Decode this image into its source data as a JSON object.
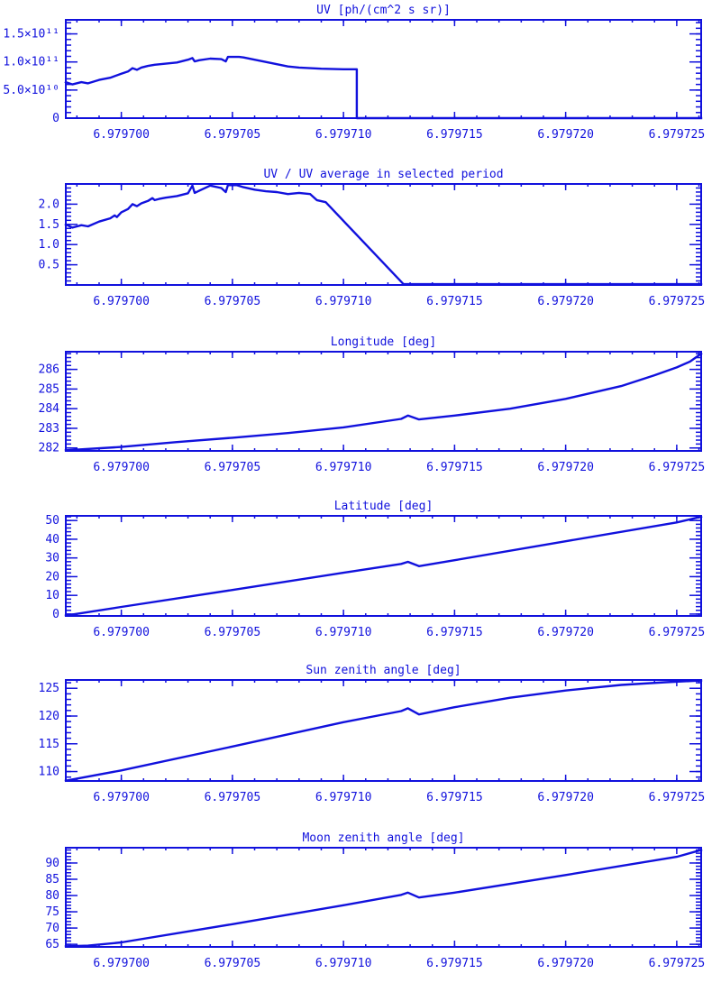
{
  "page": {
    "background": "#ffffff",
    "plot_color": "#1111dd",
    "text_color": "#1111dd"
  },
  "chart_data": [
    {
      "id": "uv",
      "type": "line",
      "title": "UV [ph/(cm^2 s sr)]",
      "xlabel": "",
      "ylabel": "",
      "grid": false,
      "legend": "none",
      "xlim": [
        6.9796975,
        6.9797261
      ],
      "ylim": [
        0,
        175000000000.0
      ],
      "xticks": {
        "values": [
          6.9797,
          6.979705,
          6.97971,
          6.979715,
          6.97972,
          6.979725
        ],
        "labels": [
          "6.979700",
          "6.979705",
          "6.979710",
          "6.979715",
          "6.979720",
          "6.979725"
        ],
        "minor_step": 1e-06
      },
      "yticks": {
        "values": [
          0,
          50000000000.0,
          100000000000.0,
          150000000000.0
        ],
        "labels": [
          "0",
          "5.0×10¹⁰",
          "1.0×10¹¹",
          "1.5×10¹¹"
        ],
        "minor_step": 10000000000.0
      },
      "series": [
        {
          "name": "UV",
          "points": [
            [
              6.9796975,
              64000000000.0
            ],
            [
              6.9796978,
              60000000000.0
            ],
            [
              6.9796982,
              64000000000.0
            ],
            [
              6.9796985,
              62000000000.0
            ],
            [
              6.979699,
              68000000000.0
            ],
            [
              6.9796995,
              72000000000.0
            ],
            [
              6.9797,
              79000000000.0
            ],
            [
              6.9797003,
              83000000000.0
            ],
            [
              6.9797005,
              89000000000.0
            ],
            [
              6.9797007,
              86000000000.0
            ],
            [
              6.9797009,
              90000000000.0
            ],
            [
              6.9797012,
              93000000000.0
            ],
            [
              6.9797015,
              95000000000.0
            ],
            [
              6.979702,
              97000000000.0
            ],
            [
              6.9797025,
              99000000000.0
            ],
            [
              6.979703,
              104000000000.0
            ],
            [
              6.9797032,
              107000000000.0
            ],
            [
              6.9797033,
              101000000000.0
            ],
            [
              6.9797035,
              103000000000.0
            ],
            [
              6.979704,
              106000000000.0
            ],
            [
              6.9797045,
              105000000000.0
            ],
            [
              6.9797047,
              101000000000.0
            ],
            [
              6.9797048,
              109000000000.0
            ],
            [
              6.9797053,
              109000000000.0
            ],
            [
              6.9797055,
              108000000000.0
            ],
            [
              6.979706,
              104000000000.0
            ],
            [
              6.9797065,
              100000000000.0
            ],
            [
              6.979707,
              96000000000.0
            ],
            [
              6.9797075,
              92000000000.0
            ],
            [
              6.979708,
              90000000000.0
            ],
            [
              6.979709,
              88000000000.0
            ],
            [
              6.97971,
              87000000000.0
            ],
            [
              6.9797106,
              87000000000.0
            ],
            [
              6.9797106,
              0
            ],
            [
              6.9797261,
              0
            ]
          ]
        }
      ]
    },
    {
      "id": "uv-ratio",
      "type": "line",
      "title": "UV / UV average in selected period",
      "xlabel": "",
      "ylabel": "",
      "grid": false,
      "legend": "none",
      "xlim": [
        6.9796975,
        6.9797261
      ],
      "ylim": [
        0,
        2.5
      ],
      "xticks": {
        "values": [
          6.9797,
          6.979705,
          6.97971,
          6.979715,
          6.97972,
          6.979725
        ],
        "labels": [
          "6.979700",
          "6.979705",
          "6.979710",
          "6.979715",
          "6.979720",
          "6.979725"
        ],
        "minor_step": 1e-06
      },
      "yticks": {
        "values": [
          0.5,
          1.0,
          1.5,
          2.0
        ],
        "labels": [
          "0.5",
          "1.0",
          "1.5",
          "2.0"
        ],
        "minor_step": 0.1
      },
      "series": [
        {
          "name": "UV ratio",
          "points": [
            [
              6.9796975,
              1.5
            ],
            [
              6.9796978,
              1.42
            ],
            [
              6.9796982,
              1.48
            ],
            [
              6.9796985,
              1.45
            ],
            [
              6.979699,
              1.57
            ],
            [
              6.9796995,
              1.65
            ],
            [
              6.9796997,
              1.72
            ],
            [
              6.9796998,
              1.68
            ],
            [
              6.9797,
              1.8
            ],
            [
              6.9797003,
              1.88
            ],
            [
              6.9797005,
              2.0
            ],
            [
              6.9797007,
              1.95
            ],
            [
              6.9797009,
              2.02
            ],
            [
              6.9797012,
              2.08
            ],
            [
              6.9797014,
              2.15
            ],
            [
              6.9797015,
              2.1
            ],
            [
              6.9797017,
              2.13
            ],
            [
              6.979702,
              2.16
            ],
            [
              6.9797025,
              2.2
            ],
            [
              6.979703,
              2.27
            ],
            [
              6.9797032,
              2.46
            ],
            [
              6.9797033,
              2.28
            ],
            [
              6.9797035,
              2.33
            ],
            [
              6.979704,
              2.46
            ],
            [
              6.9797045,
              2.4
            ],
            [
              6.9797047,
              2.3
            ],
            [
              6.9797048,
              2.47
            ],
            [
              6.9797052,
              2.47
            ],
            [
              6.9797055,
              2.42
            ],
            [
              6.979706,
              2.36
            ],
            [
              6.9797065,
              2.32
            ],
            [
              6.979707,
              2.3
            ],
            [
              6.9797075,
              2.25
            ],
            [
              6.979708,
              2.28
            ],
            [
              6.9797085,
              2.25
            ],
            [
              6.9797088,
              2.1
            ],
            [
              6.9797092,
              2.05
            ],
            [
              6.9797127,
              0.02
            ],
            [
              6.9797261,
              0.02
            ]
          ]
        }
      ]
    },
    {
      "id": "longitude",
      "type": "line",
      "title": "Longitude [deg]",
      "xlabel": "",
      "ylabel": "",
      "grid": false,
      "legend": "none",
      "xlim": [
        6.9796975,
        6.9797261
      ],
      "ylim": [
        281.85,
        286.9
      ],
      "xticks": {
        "values": [
          6.9797,
          6.979705,
          6.97971,
          6.979715,
          6.97972,
          6.979725
        ],
        "labels": [
          "6.979700",
          "6.979705",
          "6.979710",
          "6.979715",
          "6.979720",
          "6.979725"
        ],
        "minor_step": 1e-06
      },
      "yticks": {
        "values": [
          282,
          283,
          284,
          285,
          286
        ],
        "labels": [
          "282",
          "283",
          "284",
          "285",
          "286"
        ],
        "minor_step": 0.2
      },
      "series": [
        {
          "name": "Longitude",
          "points": [
            [
              6.9796975,
              281.88
            ],
            [
              6.9797,
              282.05
            ],
            [
              6.9797025,
              282.3
            ],
            [
              6.979705,
              282.52
            ],
            [
              6.9797075,
              282.76
            ],
            [
              6.97971,
              283.05
            ],
            [
              6.9797126,
              283.48
            ],
            [
              6.9797129,
              283.65
            ],
            [
              6.9797134,
              283.45
            ],
            [
              6.979715,
              283.65
            ],
            [
              6.9797175,
              284.0
            ],
            [
              6.97972,
              284.5
            ],
            [
              6.9797225,
              285.15
            ],
            [
              6.979724,
              285.7
            ],
            [
              6.979725,
              286.1
            ],
            [
              6.9797256,
              286.4
            ],
            [
              6.9797261,
              286.8
            ]
          ]
        }
      ]
    },
    {
      "id": "latitude",
      "type": "line",
      "title": "Latitude [deg]",
      "xlabel": "",
      "ylabel": "",
      "grid": false,
      "legend": "none",
      "xlim": [
        6.9796975,
        6.9797261
      ],
      "ylim": [
        -1,
        52.5
      ],
      "xticks": {
        "values": [
          6.9797,
          6.979705,
          6.97971,
          6.979715,
          6.97972,
          6.979725
        ],
        "labels": [
          "6.979700",
          "6.979705",
          "6.979710",
          "6.979715",
          "6.979720",
          "6.979725"
        ],
        "minor_step": 1e-06
      },
      "yticks": {
        "values": [
          0,
          10,
          20,
          30,
          40,
          50
        ],
        "labels": [
          "0",
          "10",
          "20",
          "30",
          "40",
          "50"
        ],
        "minor_step": 2
      },
      "series": [
        {
          "name": "Latitude",
          "points": [
            [
              6.9796975,
              -0.8
            ],
            [
              6.9797,
              3.8
            ],
            [
              6.979705,
              12.9
            ],
            [
              6.97971,
              22.1
            ],
            [
              6.9797126,
              26.8
            ],
            [
              6.9797129,
              27.9
            ],
            [
              6.9797134,
              25.6
            ],
            [
              6.979715,
              28.8
            ],
            [
              6.97972,
              38.9
            ],
            [
              6.979725,
              49.0
            ],
            [
              6.9797261,
              52.0
            ]
          ]
        }
      ]
    },
    {
      "id": "sun-zenith",
      "type": "line",
      "title": "Sun zenith angle [deg]",
      "xlabel": "",
      "ylabel": "",
      "grid": false,
      "legend": "none",
      "xlim": [
        6.9796975,
        6.9797261
      ],
      "ylim": [
        108.3,
        126.5
      ],
      "xticks": {
        "values": [
          6.9797,
          6.979705,
          6.97971,
          6.979715,
          6.97972,
          6.979725
        ],
        "labels": [
          "6.979700",
          "6.979705",
          "6.979710",
          "6.979715",
          "6.979720",
          "6.979725"
        ],
        "minor_step": 1e-06
      },
      "yticks": {
        "values": [
          110,
          115,
          120,
          125
        ],
        "labels": [
          "110",
          "115",
          "120",
          "125"
        ],
        "minor_step": 1
      },
      "series": [
        {
          "name": "Sun zenith angle",
          "points": [
            [
              6.9796975,
              108.35
            ],
            [
              6.9797,
              110.2
            ],
            [
              6.979705,
              114.5
            ],
            [
              6.97971,
              118.9
            ],
            [
              6.9797126,
              120.9
            ],
            [
              6.9797129,
              121.4
            ],
            [
              6.9797134,
              120.3
            ],
            [
              6.979715,
              121.6
            ],
            [
              6.9797175,
              123.3
            ],
            [
              6.97972,
              124.6
            ],
            [
              6.9797225,
              125.6
            ],
            [
              6.9797245,
              126.1
            ],
            [
              6.9797261,
              126.4
            ]
          ]
        }
      ]
    },
    {
      "id": "moon-zenith",
      "type": "line",
      "title": "Moon zenith angle [deg]",
      "xlabel": "",
      "ylabel": "",
      "grid": false,
      "legend": "none",
      "xlim": [
        6.9796975,
        6.9797261
      ],
      "ylim": [
        64.2,
        94.7
      ],
      "xticks": {
        "values": [
          6.9797,
          6.979705,
          6.97971,
          6.979715,
          6.97972,
          6.979725
        ],
        "labels": [
          "6.979700",
          "6.979705",
          "6.979710",
          "6.979715",
          "6.979720",
          "6.979725"
        ],
        "minor_step": 1e-06
      },
      "yticks": {
        "values": [
          65,
          70,
          75,
          80,
          85,
          90
        ],
        "labels": [
          "65",
          "70",
          "75",
          "80",
          "85",
          "90"
        ],
        "minor_step": 1
      },
      "series": [
        {
          "name": "Moon zenith angle",
          "points": [
            [
              6.9796975,
              64.4
            ],
            [
              6.9796985,
              64.6
            ],
            [
              6.9797,
              65.6
            ],
            [
              6.979705,
              71.2
            ],
            [
              6.97971,
              77.0
            ],
            [
              6.9797126,
              80.2
            ],
            [
              6.9797129,
              80.9
            ],
            [
              6.9797134,
              79.4
            ],
            [
              6.979715,
              80.9
            ],
            [
              6.97972,
              86.3
            ],
            [
              6.979725,
              91.9
            ],
            [
              6.9797261,
              94.0
            ]
          ]
        }
      ]
    }
  ]
}
